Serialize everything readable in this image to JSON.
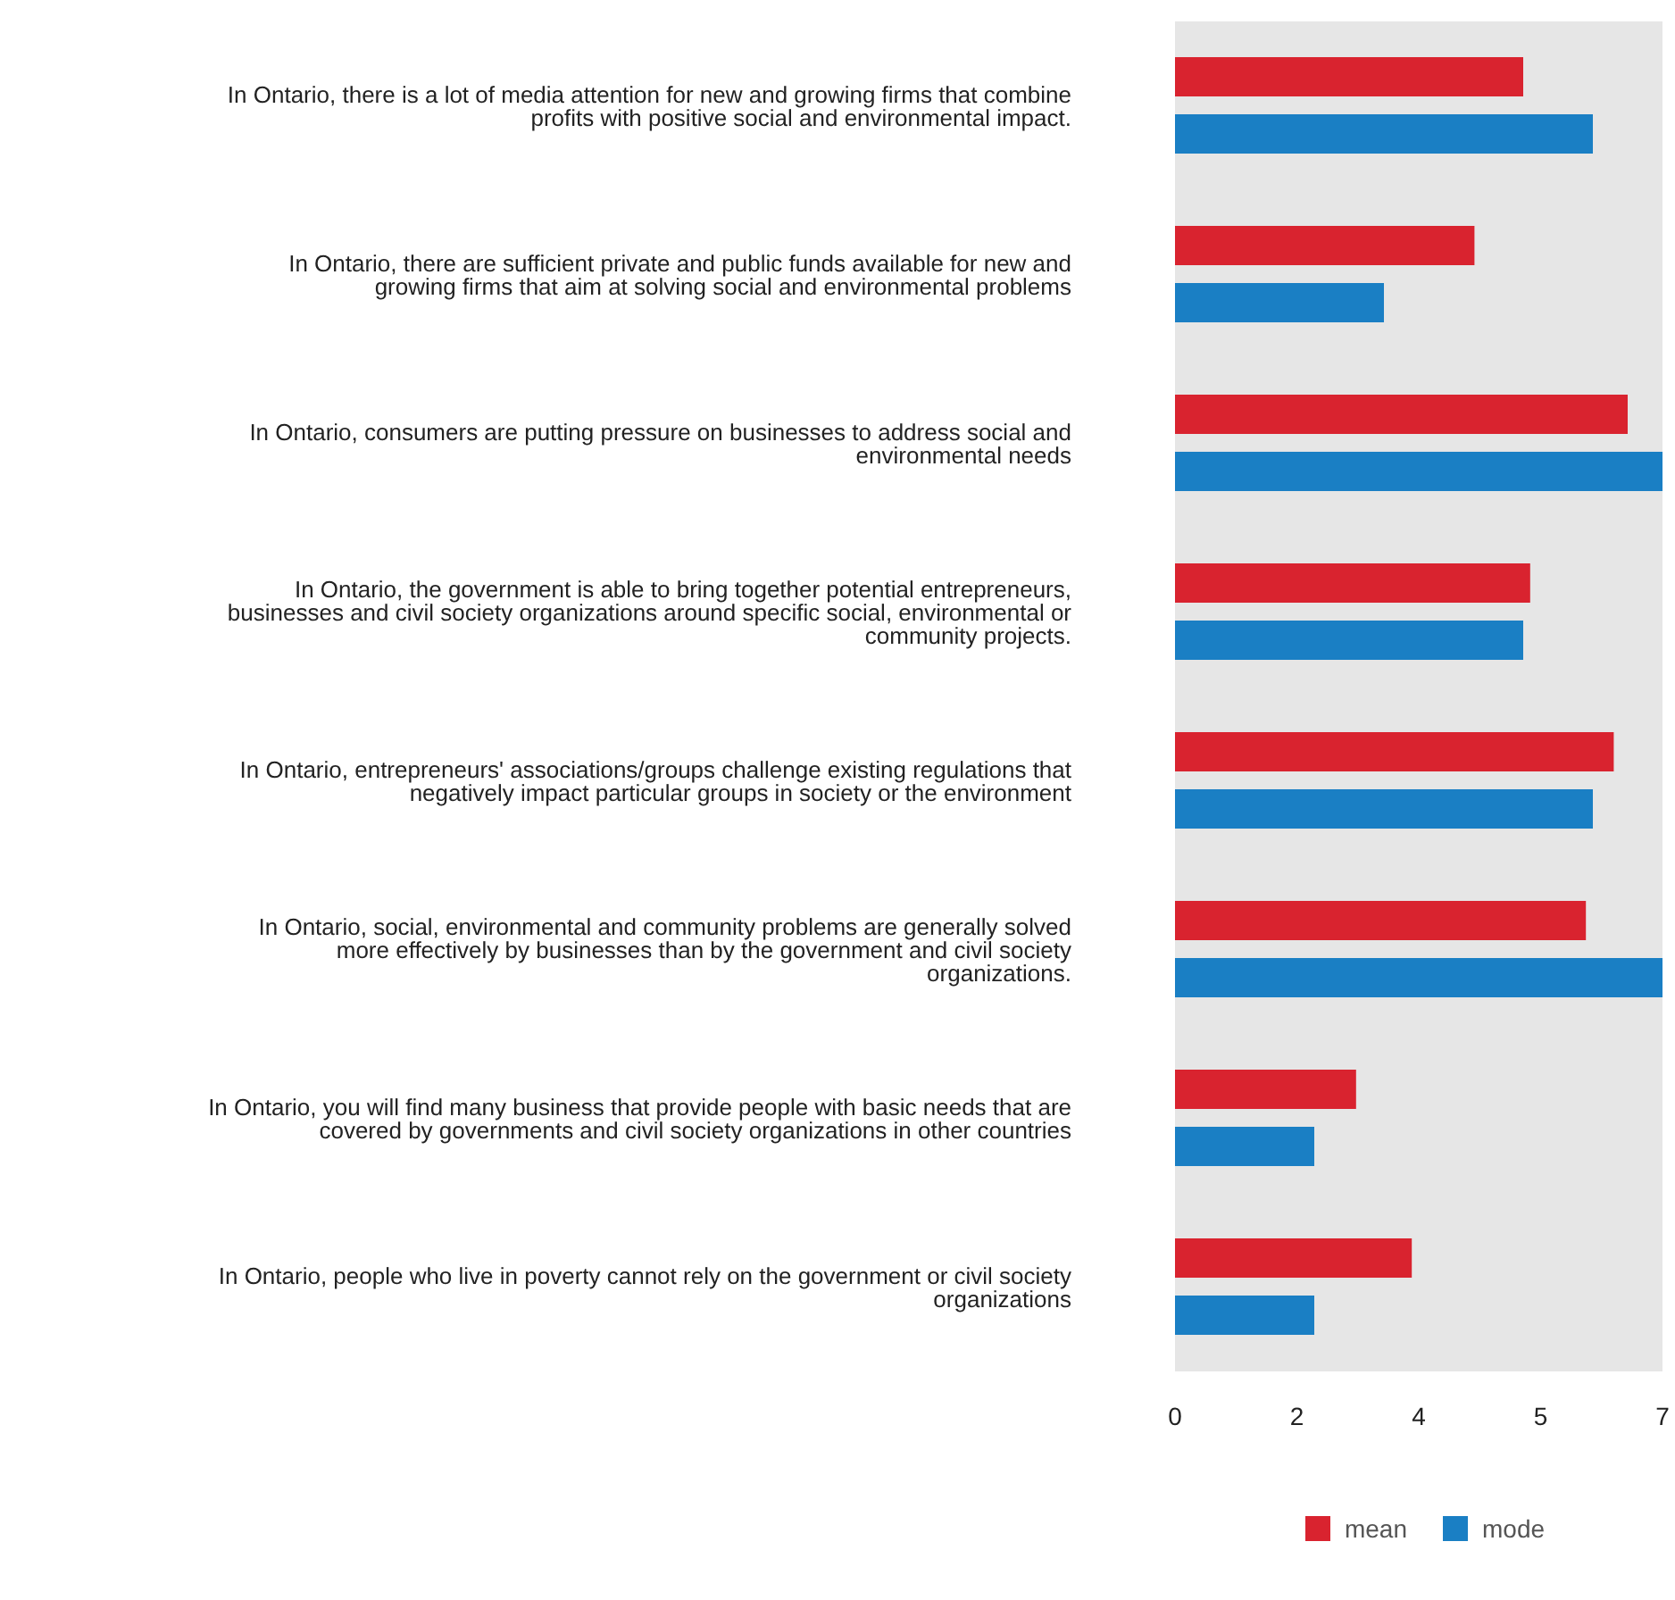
{
  "chart_data": {
    "type": "bar",
    "orientation": "horizontal",
    "categories": [
      "In Ontario, there is a lot of media attention for new and growing firms that combine profits with positive social and environmental impact.",
      "In Ontario, there are sufficient private and public funds available for new and growing firms that aim at solving social and environmental problems",
      "In Ontario, consumers are putting pressure on businesses to address social and environmental needs",
      "In Ontario, the government is able to bring together potential entrepreneurs, businesses and civil society organizations around specific social, environmental or community projects.",
      "In Ontario, entrepreneurs' associations/groups challenge existing regulations that negatively impact particular groups in society or the environment",
      "In Ontario, social, environmental and community problems are generally solved more effectively by businesses than by the government and civil society organizations.",
      "In Ontario, you will find many business that provide people with basic needs that are covered by governments and civil society organizations in other countries",
      "In Ontario, people who live in poverty cannot rely on the government or civil society organizations"
    ],
    "series": [
      {
        "name": "mean",
        "color": "#d9232f",
        "values": [
          5,
          4.3,
          6.5,
          5.1,
          6.3,
          5.9,
          2.6,
          3.4
        ]
      },
      {
        "name": "mode",
        "color": "#1a7fc4",
        "values": [
          6,
          3,
          7,
          5,
          6,
          7,
          2,
          2
        ]
      }
    ],
    "xlim": [
      0,
      7
    ],
    "xticks": [
      0,
      {
        "value": 1.75,
        "label": "2"
      },
      {
        "value": 3.5,
        "label": "4"
      },
      {
        "value": 5.25,
        "label": "5"
      },
      7
    ],
    "legend": "bottom"
  }
}
